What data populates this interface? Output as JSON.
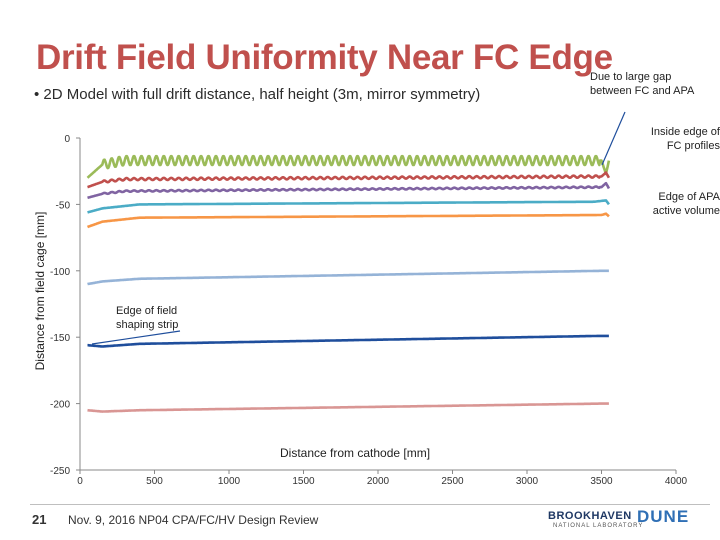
{
  "slide": {
    "title": "Drift Field Uniformity Near FC Edge",
    "bullet": "•   2D Model with full drift distance, half height (3m, mirror symmetry)",
    "page_number": "21",
    "footer": "Nov. 9, 2016   NP04 CPA/FC/HV Design Review",
    "logo_left": "BROOKHAVEN",
    "logo_left_sub": "NATIONAL LABORATORY",
    "logo_right": "DUNE"
  },
  "annotations": {
    "gap": "Due to large gap between FC and APA",
    "fc_profiles": "Inside edge of FC profiles",
    "apa": "Edge  of APA active volume",
    "strip": "Edge of field shaping strip"
  },
  "chart_data": {
    "type": "line",
    "title": "",
    "xlabel": "Distance from cathode [mm]",
    "ylabel": "Distance from field cage [mm]",
    "xlim": [
      0,
      4000
    ],
    "ylim": [
      -250,
      0
    ],
    "xticks": [
      0,
      500,
      1000,
      1500,
      2000,
      2500,
      3000,
      3500,
      4000
    ],
    "yticks": [
      0,
      -50,
      -100,
      -150,
      -200,
      -250
    ],
    "grid": false,
    "legend": "none",
    "x_end": 3550,
    "series": [
      {
        "color": "#9bbb59",
        "values": [
          [
            50,
            -30
          ],
          [
            150,
            -20
          ],
          [
            300,
            -17
          ],
          [
            3500,
            -17
          ],
          [
            3530,
            -27
          ],
          [
            3550,
            -17
          ]
        ],
        "ripple": 3.5
      },
      {
        "color": "#c0504d",
        "values": [
          [
            50,
            -37
          ],
          [
            150,
            -33
          ],
          [
            300,
            -31
          ],
          [
            3500,
            -29
          ],
          [
            3530,
            -26
          ],
          [
            3550,
            -30
          ]
        ],
        "ripple": 0.8
      },
      {
        "color": "#8064a2",
        "values": [
          [
            50,
            -45
          ],
          [
            150,
            -42
          ],
          [
            300,
            -40
          ],
          [
            3500,
            -37
          ],
          [
            3530,
            -34
          ],
          [
            3550,
            -38
          ]
        ],
        "ripple": 0.5
      },
      {
        "color": "#4bacc6",
        "values": [
          [
            50,
            -56
          ],
          [
            150,
            -53
          ],
          [
            400,
            -50
          ],
          [
            3450,
            -48
          ],
          [
            3530,
            -47
          ],
          [
            3550,
            -50
          ]
        ],
        "ripple": 0
      },
      {
        "color": "#f79646",
        "values": [
          [
            50,
            -67
          ],
          [
            150,
            -63
          ],
          [
            400,
            -60
          ],
          [
            3500,
            -58
          ],
          [
            3530,
            -57
          ],
          [
            3550,
            -59
          ]
        ],
        "ripple": 0
      },
      {
        "color": "#95b3d7",
        "values": [
          [
            50,
            -110
          ],
          [
            150,
            -108
          ],
          [
            400,
            -106
          ],
          [
            3500,
            -100
          ],
          [
            3550,
            -100
          ]
        ],
        "ripple": 0
      },
      {
        "color": "#1f4e9c",
        "values": [
          [
            50,
            -156
          ],
          [
            150,
            -157
          ],
          [
            400,
            -155
          ],
          [
            3500,
            -149
          ],
          [
            3550,
            -149
          ]
        ],
        "ripple": 0
      },
      {
        "color": "#d99694",
        "values": [
          [
            50,
            -205
          ],
          [
            150,
            -206
          ],
          [
            400,
            -205
          ],
          [
            3500,
            -200
          ],
          [
            3550,
            -200
          ]
        ],
        "ripple": 0
      }
    ]
  }
}
